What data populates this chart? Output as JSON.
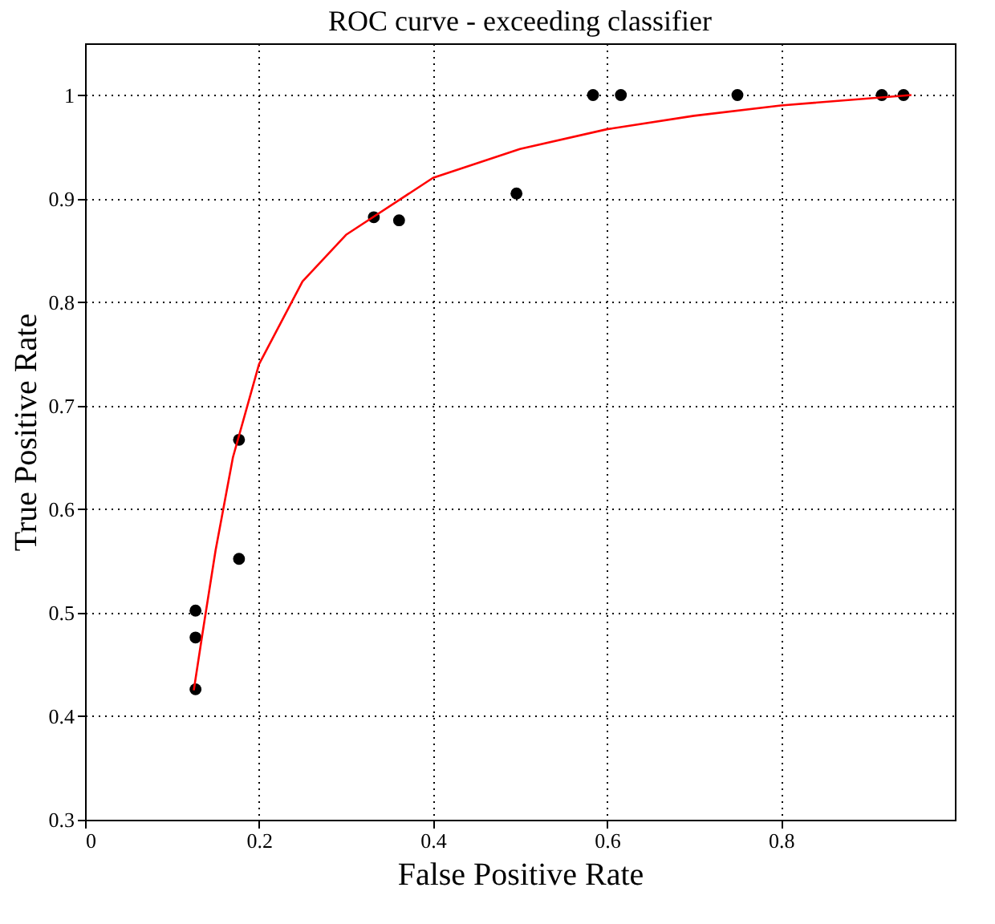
{
  "chart_data": {
    "type": "scatter",
    "title": "ROC curve - exceeding classifier",
    "xlabel": "False Positive Rate",
    "ylabel": "True Positive Rate",
    "xlim": [
      0,
      1
    ],
    "ylim": [
      0.3,
      1.05
    ],
    "xticks": [
      0,
      0.2,
      0.4,
      0.6,
      0.8
    ],
    "yticks": [
      0.3,
      0.4,
      0.5,
      0.6,
      0.7,
      0.8,
      0.9,
      1
    ],
    "grid": true,
    "marker": "circle",
    "series": [
      {
        "color": "#000000",
        "x": [
          0.127,
          0.127,
          0.127,
          0.177,
          0.177,
          0.332,
          0.361,
          0.496,
          0.584,
          0.616,
          0.75,
          0.916,
          0.941
        ],
        "values": [
          0.426,
          0.476,
          0.502,
          0.552,
          0.667,
          0.882,
          0.879,
          0.905,
          1.0,
          1.0,
          1.0,
          1.0,
          1.0
        ]
      },
      {
        "type": "line",
        "color": "#ff0000",
        "line_style": "solid",
        "marker": "none",
        "x": [
          0.125,
          0.135,
          0.15,
          0.17,
          0.2,
          0.25,
          0.3,
          0.4,
          0.5,
          0.6,
          0.7,
          0.8,
          0.95
        ],
        "values": [
          0.425,
          0.48,
          0.56,
          0.65,
          0.74,
          0.82,
          0.865,
          0.92,
          0.948,
          0.967,
          0.98,
          0.99,
          1.0
        ]
      }
    ]
  }
}
